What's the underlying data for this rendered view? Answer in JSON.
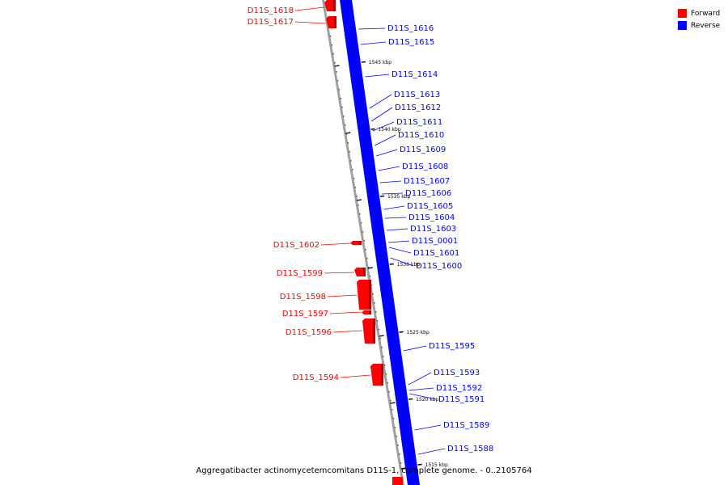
{
  "colors": {
    "forward": "#ff0000",
    "reverse": "#0000ff",
    "backbone": "#a0a0a0"
  },
  "legend": [
    {
      "label": "Forward",
      "color": "#ff0000"
    },
    {
      "label": "Reverse",
      "color": "#0000ff"
    }
  ],
  "caption": "Aggregatibacter actinomycetemcomitans D11S-1, complete genome. - 0..2105764",
  "ticks": [
    {
      "label": "1545 kbp"
    },
    {
      "label": "1540 kbp"
    },
    {
      "label": "1535 kbp"
    },
    {
      "label": "1530 kbp"
    },
    {
      "label": "1525 kbp"
    },
    {
      "label": "1520 kbp"
    },
    {
      "label": "1515 kbp"
    }
  ],
  "forward_genes": [
    {
      "label": "D11S_1618"
    },
    {
      "label": "D11S_1617"
    },
    {
      "label": "D11S_1602"
    },
    {
      "label": "D11S_1599"
    },
    {
      "label": "D11S_1598"
    },
    {
      "label": "D11S_1597"
    },
    {
      "label": "D11S_1596"
    },
    {
      "label": "D11S_1594"
    }
  ],
  "reverse_genes": [
    {
      "label": "D11S_1616"
    },
    {
      "label": "D11S_1615"
    },
    {
      "label": "D11S_1614"
    },
    {
      "label": "D11S_1613"
    },
    {
      "label": "D11S_1612"
    },
    {
      "label": "D11S_1611"
    },
    {
      "label": "D11S_1610"
    },
    {
      "label": "D11S_1609"
    },
    {
      "label": "D11S_1608"
    },
    {
      "label": "D11S_1607"
    },
    {
      "label": "D11S_1606"
    },
    {
      "label": "D11S_1605"
    },
    {
      "label": "D11S_1604"
    },
    {
      "label": "D11S_1603"
    },
    {
      "label": "D11S_0001"
    },
    {
      "label": "D11S_1601"
    },
    {
      "label": "D11S_1600"
    },
    {
      "label": "D11S_1595"
    },
    {
      "label": "D11S_1593"
    },
    {
      "label": "D11S_1592"
    },
    {
      "label": "D11S_1591"
    },
    {
      "label": "D11S_1589"
    },
    {
      "label": "D11S_1588"
    }
  ]
}
